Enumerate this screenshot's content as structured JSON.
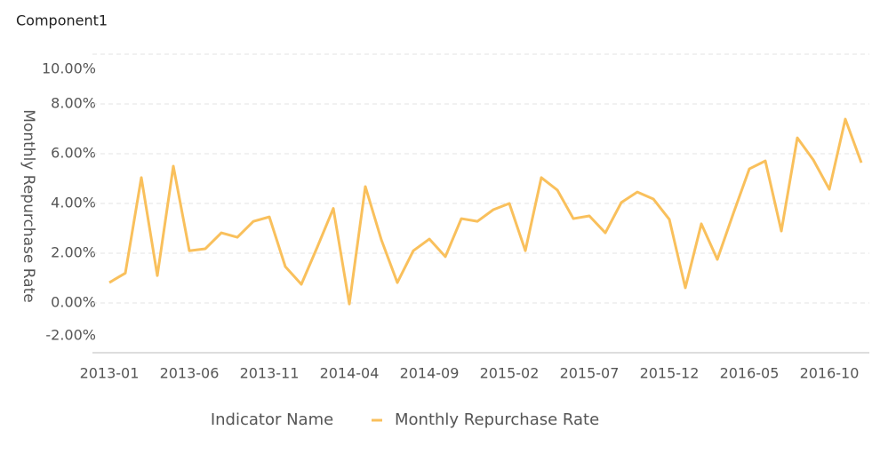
{
  "chart_data": {
    "type": "line",
    "title": "Component1",
    "y_axis_label": "Monthly Repurchase Rate",
    "legend_title": "Indicator Name",
    "categories": [
      "2013-01",
      null,
      null,
      null,
      null,
      "2013-06",
      null,
      null,
      null,
      null,
      "2013-11",
      null,
      null,
      null,
      null,
      "2014-04",
      null,
      null,
      null,
      null,
      "2014-09",
      null,
      null,
      null,
      null,
      "2015-02",
      null,
      null,
      null,
      null,
      "2015-07",
      null,
      null,
      null,
      null,
      "2015-12",
      null,
      null,
      null,
      null,
      "2016-05",
      null,
      null,
      null,
      null,
      "2016-10",
      null,
      null
    ],
    "series": [
      {
        "name": "Monthly Repurchase Rate",
        "color": "#f9c05c",
        "values": [
          0.82,
          1.2,
          5.04,
          1.1,
          5.5,
          2.1,
          2.18,
          2.82,
          2.64,
          3.28,
          3.46,
          1.46,
          0.75,
          2.25,
          3.8,
          -0.04,
          4.68,
          2.54,
          0.82,
          2.1,
          2.57,
          1.86,
          3.39,
          3.28,
          3.75,
          4.0,
          2.1,
          5.04,
          4.54,
          3.39,
          3.5,
          2.82,
          4.04,
          4.46,
          4.18,
          3.36,
          0.61,
          3.18,
          1.75,
          3.6,
          5.39,
          5.71,
          2.89,
          6.64,
          5.75,
          4.57,
          7.39,
          5.64
        ]
      }
    ],
    "ylim": [
      -2,
      10
    ],
    "yticks": [
      {
        "value": -2,
        "label": "-2.00%"
      },
      {
        "value": 0,
        "label": "0.00%"
      },
      {
        "value": 2,
        "label": "2.00%"
      },
      {
        "value": 4,
        "label": "4.00%"
      },
      {
        "value": 6,
        "label": "6.00%"
      },
      {
        "value": 8,
        "label": "8.00%"
      },
      {
        "value": 10,
        "label": "10.00%"
      }
    ],
    "grid": true
  }
}
